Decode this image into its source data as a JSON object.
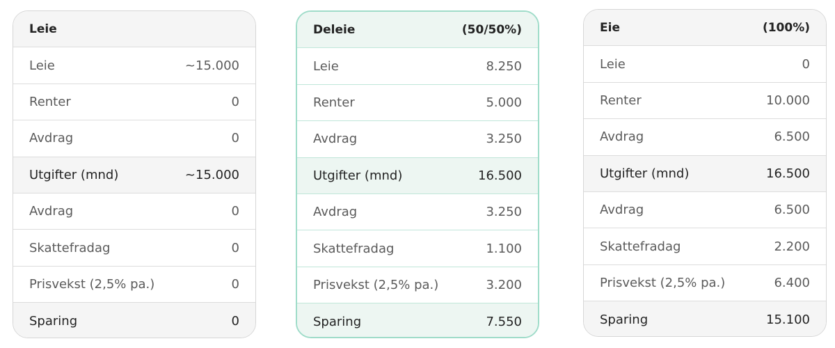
{
  "colors": {
    "accent_border": "#9fdcc9",
    "accent_bg": "#edf6f2",
    "neutral_bg": "#f5f5f5"
  },
  "cards": [
    {
      "title": "Leie",
      "subtitle": "",
      "rows": [
        {
          "label": "Leie",
          "value": "~15.000"
        },
        {
          "label": "Renter",
          "value": "0"
        },
        {
          "label": "Avdrag",
          "value": "0"
        },
        {
          "label": "Utgifter (mnd)",
          "value": "~15.000"
        },
        {
          "label": "Avdrag",
          "value": "0"
        },
        {
          "label": "Skattefradag",
          "value": "0"
        },
        {
          "label": "Prisvekst (2,5% pa.)",
          "value": "0"
        },
        {
          "label": "Sparing",
          "value": "0"
        }
      ]
    },
    {
      "title": "Deleie",
      "subtitle": "(50/50%)",
      "rows": [
        {
          "label": "Leie",
          "value": "8.250"
        },
        {
          "label": "Renter",
          "value": "5.000"
        },
        {
          "label": "Avdrag",
          "value": "3.250"
        },
        {
          "label": "Utgifter (mnd)",
          "value": "16.500"
        },
        {
          "label": "Avdrag",
          "value": "3.250"
        },
        {
          "label": "Skattefradag",
          "value": "1.100"
        },
        {
          "label": "Prisvekst (2,5% pa.)",
          "value": "3.200"
        },
        {
          "label": "Sparing",
          "value": "7.550"
        }
      ]
    },
    {
      "title": "Eie",
      "subtitle": "(100%)",
      "rows": [
        {
          "label": "Leie",
          "value": "0"
        },
        {
          "label": "Renter",
          "value": "10.000"
        },
        {
          "label": "Avdrag",
          "value": "6.500"
        },
        {
          "label": "Utgifter (mnd)",
          "value": "16.500"
        },
        {
          "label": "Avdrag",
          "value": "6.500"
        },
        {
          "label": "Skattefradag",
          "value": "2.200"
        },
        {
          "label": "Prisvekst (2,5% pa.)",
          "value": "6.400"
        },
        {
          "label": "Sparing",
          "value": "15.100"
        }
      ]
    }
  ]
}
